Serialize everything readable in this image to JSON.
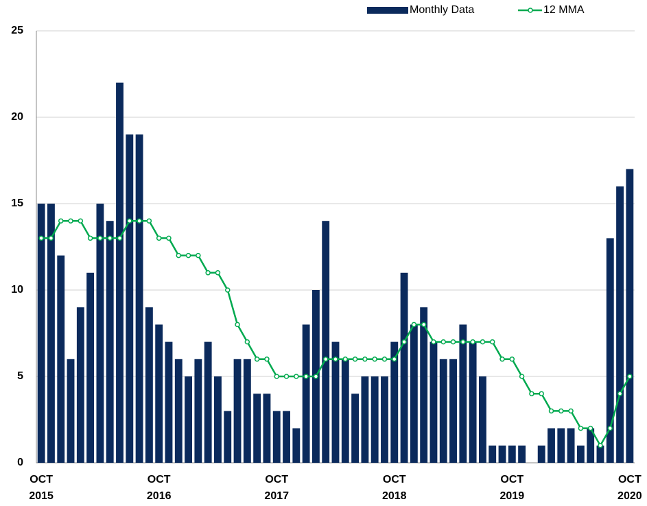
{
  "chart_data": {
    "type": "bar_line",
    "categories": [
      "OCT 2015",
      null,
      null,
      null,
      null,
      null,
      null,
      null,
      null,
      null,
      null,
      null,
      "OCT 2016",
      null,
      null,
      null,
      null,
      null,
      null,
      null,
      null,
      null,
      null,
      null,
      "OCT 2017",
      null,
      null,
      null,
      null,
      null,
      null,
      null,
      null,
      null,
      null,
      null,
      "OCT 2018",
      null,
      null,
      null,
      null,
      null,
      null,
      null,
      null,
      null,
      null,
      null,
      "OCT 2019",
      null,
      null,
      null,
      null,
      null,
      null,
      null,
      null,
      null,
      null,
      null,
      "OCT 2020"
    ],
    "series": [
      {
        "name": "Monthly Data",
        "type": "bar",
        "color": "#0b2a5c",
        "values": [
          15,
          15,
          12,
          6,
          9,
          11,
          15,
          14,
          22,
          19,
          19,
          9,
          8,
          7,
          6,
          5,
          6,
          7,
          5,
          3,
          6,
          6,
          4,
          4,
          3,
          3,
          2,
          8,
          10,
          14,
          7,
          6,
          4,
          5,
          5,
          5,
          7,
          11,
          8,
          9,
          7,
          6,
          6,
          8,
          7,
          5,
          1,
          1,
          1,
          1,
          0,
          1,
          2,
          2,
          2,
          1,
          2,
          1,
          13,
          16,
          17
        ]
      },
      {
        "name": "12 MMA",
        "type": "line",
        "color": "#00a94f",
        "values": [
          13,
          13,
          14,
          14,
          14,
          13,
          13,
          13,
          13,
          14,
          14,
          14,
          13,
          13,
          12,
          12,
          12,
          11,
          11,
          10,
          8,
          7,
          6,
          6,
          5,
          5,
          5,
          5,
          5,
          6,
          6,
          6,
          6,
          6,
          6,
          6,
          6,
          7,
          8,
          8,
          7,
          7,
          7,
          7,
          7,
          7,
          7,
          6,
          6,
          5,
          4,
          4,
          3,
          3,
          3,
          2,
          2,
          1,
          2,
          4,
          5
        ]
      }
    ],
    "ylim": [
      0,
      25
    ],
    "yticks": [
      0,
      5,
      10,
      15,
      20,
      25
    ],
    "grid": true,
    "legend": "top-right"
  }
}
